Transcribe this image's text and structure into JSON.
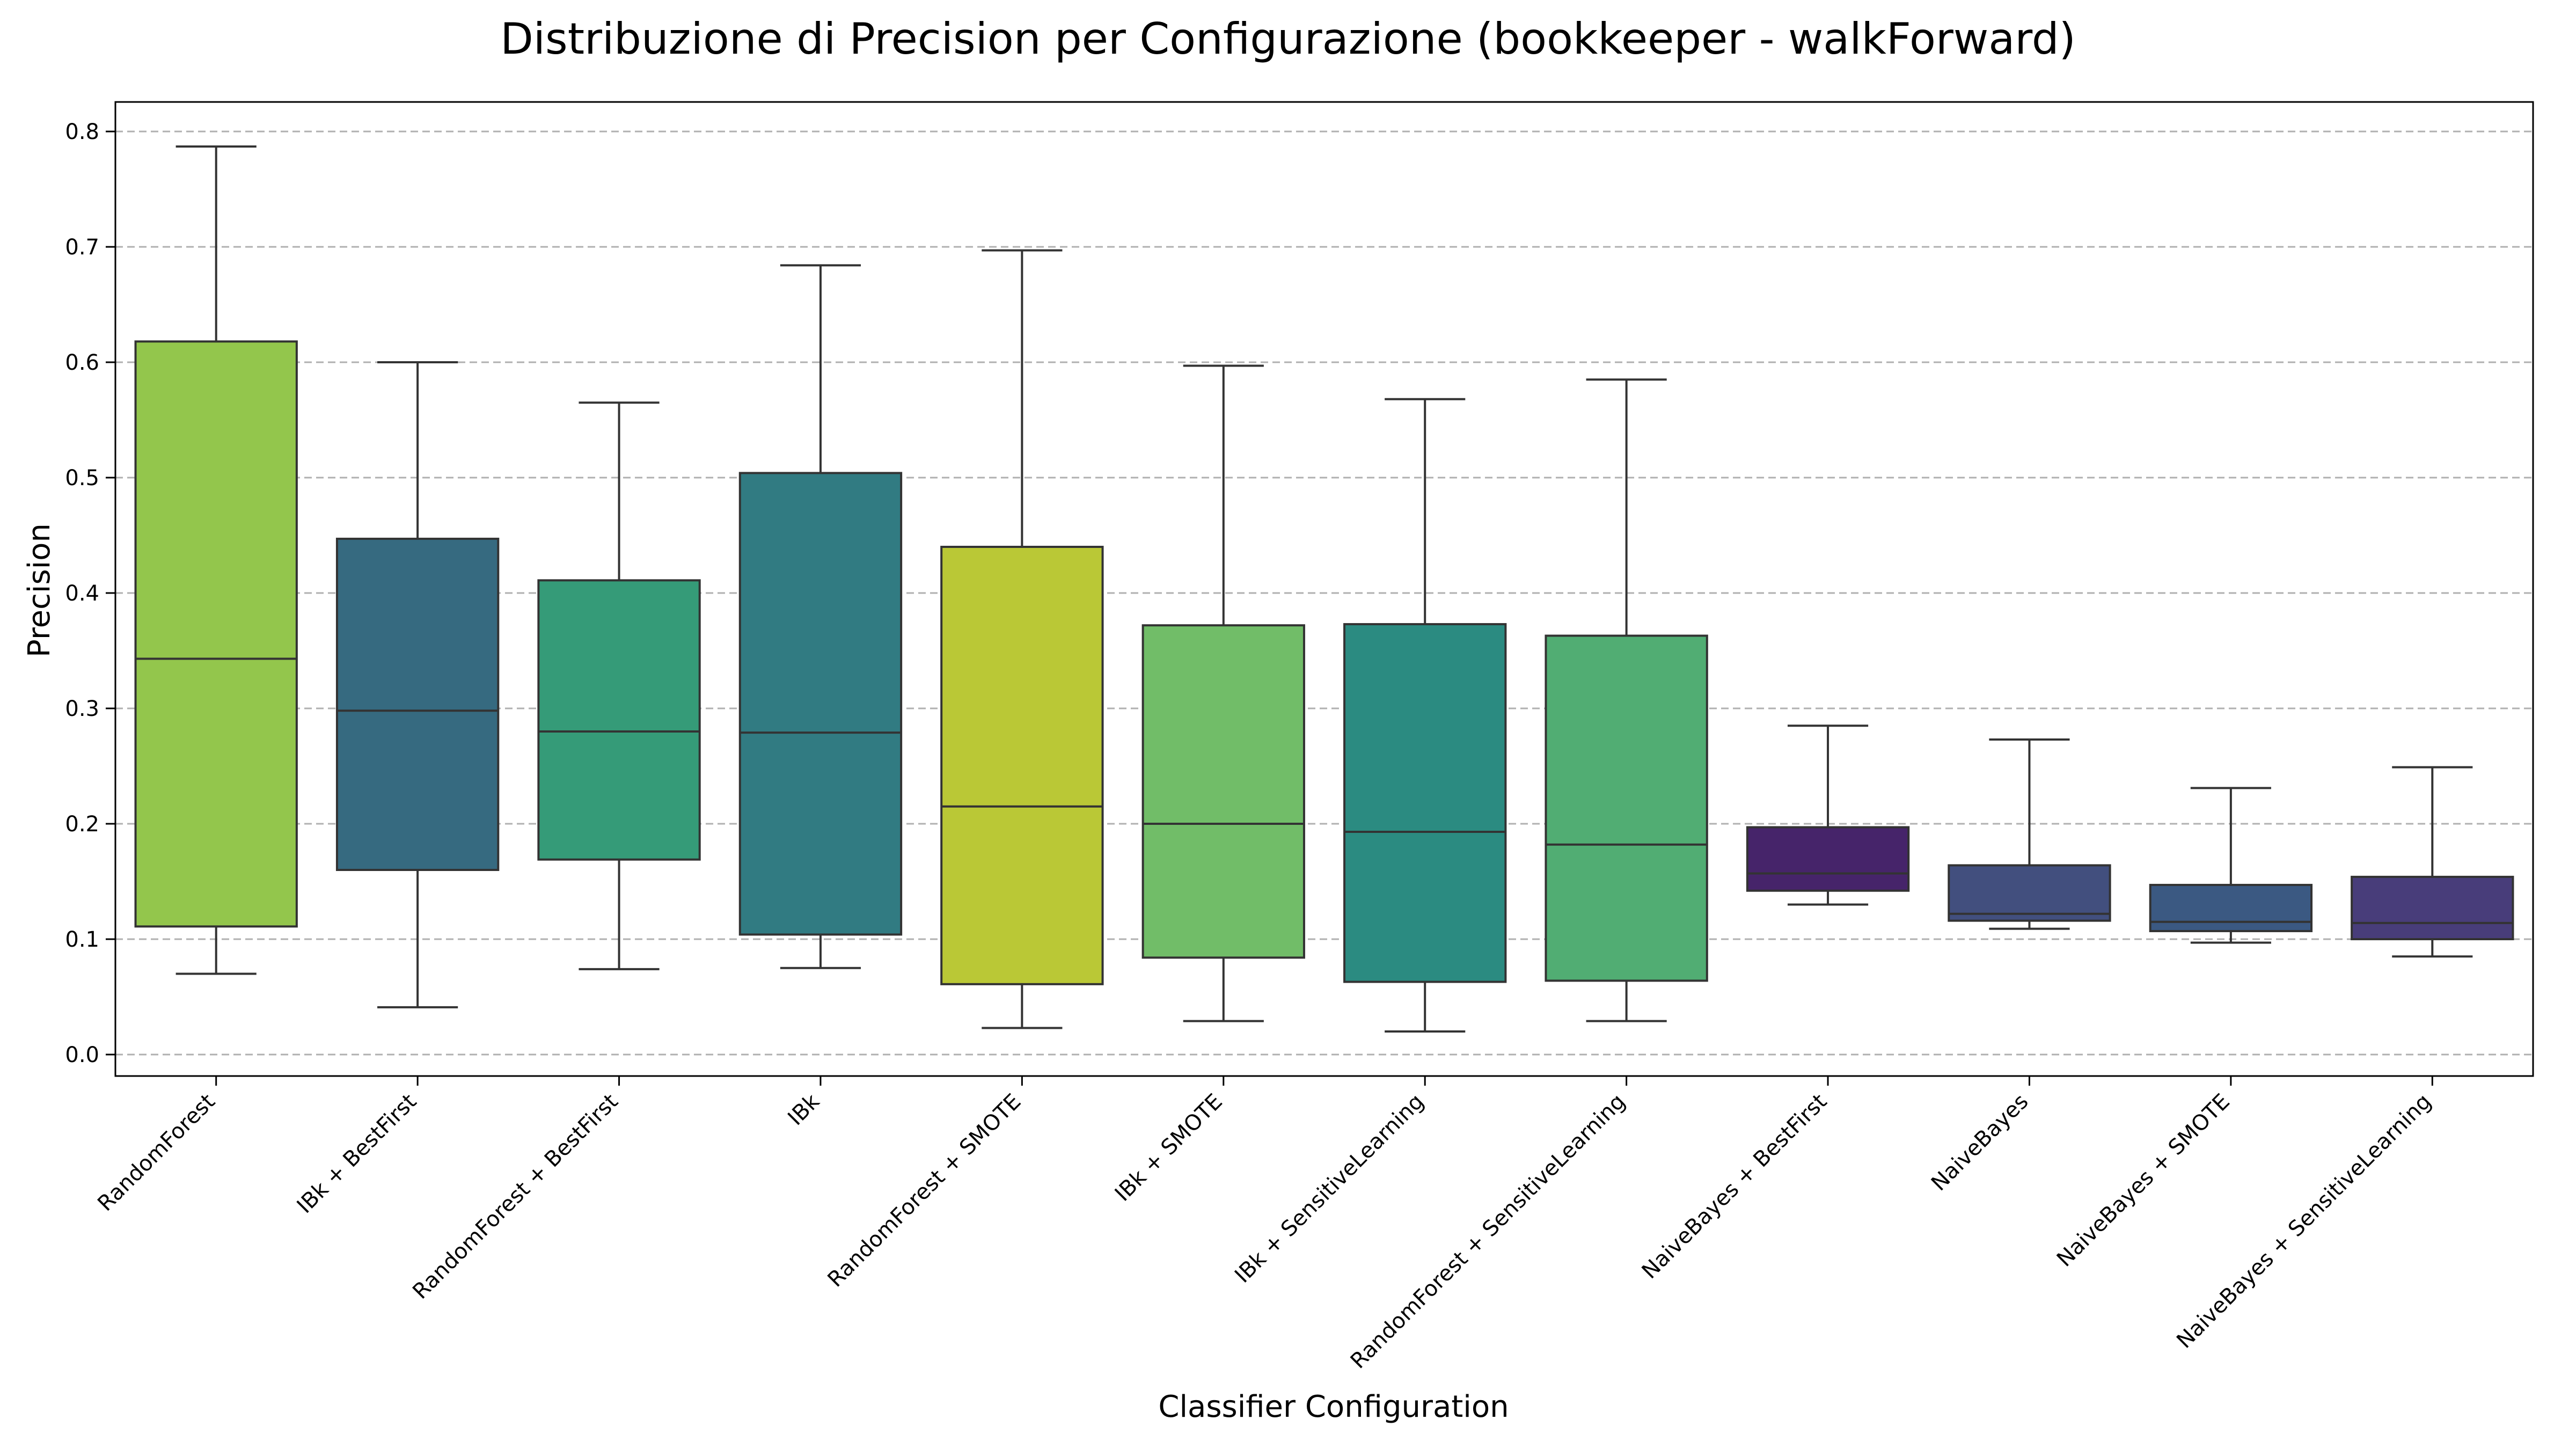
{
  "chart_data": {
    "type": "box",
    "title": "Distribuzione di Precision per Configurazione (bookkeeper - walkForward)",
    "xlabel": "Classifier Configuration",
    "ylabel": "Precision",
    "ylim": [
      -0.02,
      0.825
    ],
    "yticks": [
      0.0,
      0.1,
      0.2,
      0.3,
      0.4,
      0.5,
      0.6,
      0.7,
      0.8
    ],
    "ytick_labels": [
      "0.0",
      "0.1",
      "0.2",
      "0.3",
      "0.4",
      "0.5",
      "0.6",
      "0.7",
      "0.8"
    ],
    "grid": "horizontal dashed",
    "categories": [
      "RandomForest",
      "IBk + BestFirst",
      "RandomForest + BestFirst",
      "IBk",
      "RandomForest + SMOTE",
      "IBk + SMOTE",
      "IBk + SensitiveLearning",
      "RandomForest + SensitiveLearning",
      "NaiveBayes + BestFirst",
      "NaiveBayes",
      "NaiveBayes + SMOTE",
      "NaiveBayes + SensitiveLearning"
    ],
    "boxes": [
      {
        "min": 0.07,
        "q1": 0.111,
        "median": 0.343,
        "q3": 0.618,
        "max": 0.787,
        "color": "#93c64c"
      },
      {
        "min": 0.041,
        "q1": 0.16,
        "median": 0.298,
        "q3": 0.447,
        "max": 0.6,
        "color": "#366a80"
      },
      {
        "min": 0.074,
        "q1": 0.169,
        "median": 0.28,
        "q3": 0.411,
        "max": 0.565,
        "color": "#359b78"
      },
      {
        "min": 0.075,
        "q1": 0.104,
        "median": 0.279,
        "q3": 0.504,
        "max": 0.684,
        "color": "#317b82"
      },
      {
        "min": 0.023,
        "q1": 0.061,
        "median": 0.215,
        "q3": 0.44,
        "max": 0.697,
        "color": "#bac836"
      },
      {
        "min": 0.029,
        "q1": 0.084,
        "median": 0.2,
        "q3": 0.372,
        "max": 0.597,
        "color": "#71bd68"
      },
      {
        "min": 0.02,
        "q1": 0.063,
        "median": 0.193,
        "q3": 0.373,
        "max": 0.568,
        "color": "#2b8b81"
      },
      {
        "min": 0.029,
        "q1": 0.064,
        "median": 0.182,
        "q3": 0.363,
        "max": 0.585,
        "color": "#51ad73"
      },
      {
        "min": 0.13,
        "q1": 0.142,
        "median": 0.157,
        "q3": 0.197,
        "max": 0.285,
        "color": "#46246a"
      },
      {
        "min": 0.109,
        "q1": 0.116,
        "median": 0.122,
        "q3": 0.164,
        "max": 0.273,
        "color": "#424f7e"
      },
      {
        "min": 0.097,
        "q1": 0.107,
        "median": 0.115,
        "q3": 0.147,
        "max": 0.231,
        "color": "#3b5982"
      },
      {
        "min": 0.085,
        "q1": 0.1,
        "median": 0.114,
        "q3": 0.154,
        "max": 0.249,
        "color": "#483d7a"
      }
    ]
  }
}
